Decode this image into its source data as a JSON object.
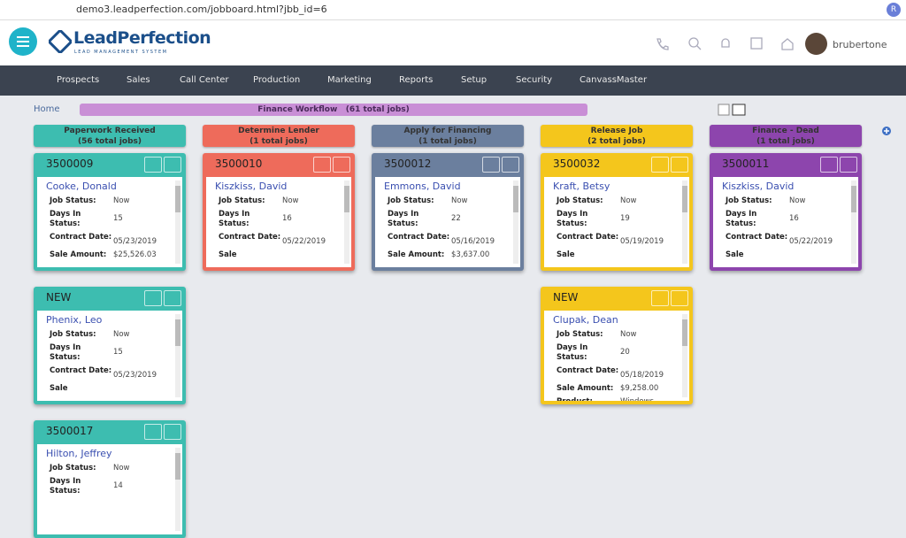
{
  "browser": {
    "url": "demo3.leadperfection.com/jobboard.html?jbb_id=6",
    "profile": "R"
  },
  "header": {
    "logo": "LeadPerfection",
    "tagline": "LEAD MANAGEMENT SYSTEM",
    "user": "brubertone"
  },
  "nav": [
    "Prospects",
    "Sales",
    "Call Center",
    "Production",
    "Marketing",
    "Reports",
    "Setup",
    "Security",
    "CanvassMaster"
  ],
  "breadcrumb": "Home",
  "workflow": {
    "title": "Finance Workflow",
    "count": "(61 total jobs)"
  },
  "columns": [
    {
      "title": "Paperwork Received",
      "count": "(56 total jobs)",
      "color": "#3dbdb0",
      "cards": [
        {
          "id": "3500009",
          "name": "Cooke, Donald",
          "fields": [
            {
              "label": "Job Status:",
              "value": "Now"
            },
            {
              "label": "Days In Status:",
              "value": "15"
            },
            {
              "label": "Contract Date:",
              "value": "05/23/2019"
            },
            {
              "label": "Sale Amount:",
              "value": "$25,526.03"
            }
          ]
        },
        {
          "id": "NEW",
          "name": "Phenix, Leo",
          "fields": [
            {
              "label": "Job Status:",
              "value": "Now"
            },
            {
              "label": "Days In Status:",
              "value": "15"
            },
            {
              "label": "Contract Date:",
              "value": "05/23/2019"
            },
            {
              "label": "Sale"
            }
          ]
        },
        {
          "id": "3500017",
          "name": "Hilton, Jeffrey",
          "fields": [
            {
              "label": "Job Status:",
              "value": "Now"
            },
            {
              "label": "Days In Status:",
              "value": "14"
            }
          ]
        }
      ]
    },
    {
      "title": "Determine Lender",
      "count": "(1 total jobs)",
      "color": "#ee6b5b",
      "cards": [
        {
          "id": "3500010",
          "name": "Kiszkiss, David",
          "fields": [
            {
              "label": "Job Status:",
              "value": "Now"
            },
            {
              "label": "Days In Status:",
              "value": "16"
            },
            {
              "label": "Contract Date:",
              "value": "05/22/2019"
            },
            {
              "label": "Sale"
            }
          ]
        }
      ]
    },
    {
      "title": "Apply for Financing",
      "count": "(1 total jobs)",
      "color": "#6b7f9e",
      "cards": [
        {
          "id": "3500012",
          "name": "Emmons, David",
          "fields": [
            {
              "label": "Job Status:",
              "value": "Now"
            },
            {
              "label": "Days In Status:",
              "value": "22"
            },
            {
              "label": "Contract Date:",
              "value": "05/16/2019"
            },
            {
              "label": "Sale Amount:",
              "value": "$3,637.00"
            }
          ]
        }
      ]
    },
    {
      "title": "Release Job",
      "count": "(2 total jobs)",
      "color": "#f4c61c",
      "cards": [
        {
          "id": "3500032",
          "name": "Kraft, Betsy",
          "fields": [
            {
              "label": "Job Status:",
              "value": "Now"
            },
            {
              "label": "Days In Status:",
              "value": "19"
            },
            {
              "label": "Contract Date:",
              "value": "05/19/2019"
            },
            {
              "label": "Sale"
            }
          ]
        },
        {
          "id": "NEW",
          "name": "Clupak, Dean",
          "fields": [
            {
              "label": "Job Status:",
              "value": "Now"
            },
            {
              "label": "Days In Status:",
              "value": "20"
            },
            {
              "label": "Contract Date:",
              "value": "05/18/2019"
            },
            {
              "label": "Sale Amount:",
              "value": "$9,258.00"
            },
            {
              "label": "Product:",
              "value": "Windows"
            }
          ]
        }
      ]
    },
    {
      "title": "Finance - Dead",
      "count": "(1 total jobs)",
      "color": "#8d45ad",
      "cards": [
        {
          "id": "3500011",
          "name": "Kiszkiss, David",
          "fields": [
            {
              "label": "Job Status:",
              "value": "Now"
            },
            {
              "label": "Days In Status:",
              "value": "16"
            },
            {
              "label": "Contract Date:",
              "value": "05/22/2019"
            },
            {
              "label": "Sale"
            }
          ]
        }
      ]
    }
  ]
}
